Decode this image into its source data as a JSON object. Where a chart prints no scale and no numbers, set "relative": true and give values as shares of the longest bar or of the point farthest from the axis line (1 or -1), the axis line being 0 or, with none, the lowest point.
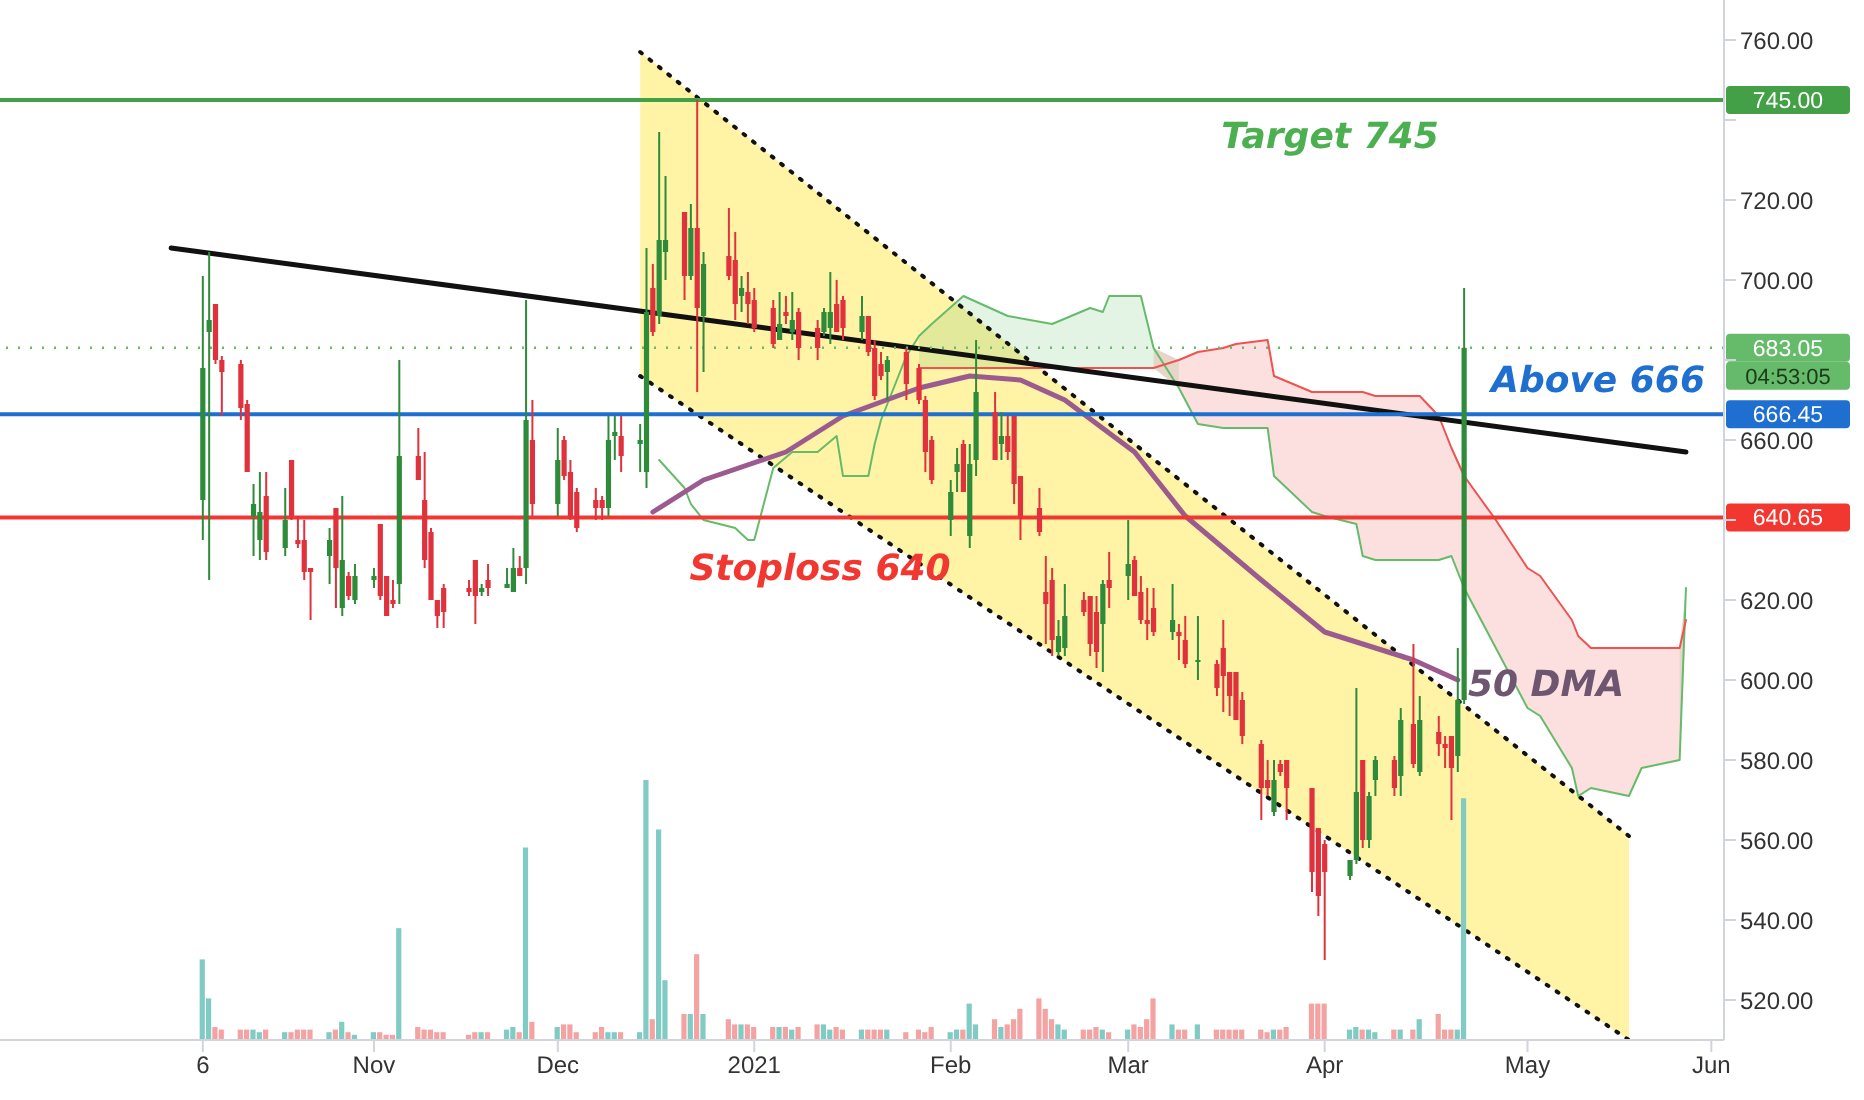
{
  "chart_data": [
    {
      "type": "candlestick",
      "x": [
        "2020-10-06",
        "2020-10-07",
        "2020-10-08",
        "2020-10-09",
        "2020-10-12",
        "2020-10-13",
        "2020-10-14",
        "2020-10-15",
        "2020-10-16",
        "2020-10-19",
        "2020-10-20",
        "2020-10-21",
        "2020-10-22",
        "2020-10-23",
        "2020-10-26",
        "2020-10-27",
        "2020-10-28",
        "2020-10-29",
        "2020-10-30",
        "2020-11-02",
        "2020-11-03",
        "2020-11-04",
        "2020-11-05",
        "2020-11-06",
        "2020-11-09",
        "2020-11-10",
        "2020-11-11",
        "2020-11-12",
        "2020-11-13",
        "2020-11-17",
        "2020-11-18",
        "2020-11-19",
        "2020-11-20",
        "2020-11-23",
        "2020-11-24",
        "2020-11-25",
        "2020-11-26",
        "2020-11-27",
        "2020-12-01",
        "2020-12-02",
        "2020-12-03",
        "2020-12-04",
        "2020-12-07",
        "2020-12-08",
        "2020-12-09",
        "2020-12-10",
        "2020-12-11",
        "2020-12-14",
        "2020-12-15",
        "2020-12-16",
        "2020-12-17",
        "2020-12-18",
        "2020-12-21",
        "2020-12-22",
        "2020-12-23",
        "2020-12-24",
        "2020-12-28",
        "2020-12-29",
        "2020-12-30",
        "2020-12-31",
        "2021-01-01",
        "2021-01-04",
        "2021-01-05",
        "2021-01-06",
        "2021-01-07",
        "2021-01-08",
        "2021-01-11",
        "2021-01-12",
        "2021-01-13",
        "2021-01-14",
        "2021-01-15",
        "2021-01-18",
        "2021-01-19",
        "2021-01-20",
        "2021-01-21",
        "2021-01-22",
        "2021-01-25",
        "2021-01-27",
        "2021-01-28",
        "2021-01-29",
        "2021-02-01",
        "2021-02-02",
        "2021-02-03",
        "2021-02-04",
        "2021-02-05",
        "2021-02-08",
        "2021-02-09",
        "2021-02-10",
        "2021-02-11",
        "2021-02-12",
        "2021-02-15",
        "2021-02-16",
        "2021-02-17",
        "2021-02-18",
        "2021-02-19",
        "2021-02-22",
        "2021-02-23",
        "2021-02-24",
        "2021-02-25",
        "2021-02-26",
        "2021-03-01",
        "2021-03-02",
        "2021-03-03",
        "2021-03-04",
        "2021-03-05",
        "2021-03-08",
        "2021-03-09",
        "2021-03-10",
        "2021-03-12",
        "2021-03-15",
        "2021-03-16",
        "2021-03-17",
        "2021-03-18",
        "2021-03-19",
        "2021-03-22",
        "2021-03-23",
        "2021-03-24",
        "2021-03-25",
        "2021-03-26",
        "2021-03-30",
        "2021-03-31",
        "2021-04-01",
        "2021-04-05",
        "2021-04-06",
        "2021-04-07",
        "2021-04-08",
        "2021-04-09",
        "2021-04-12",
        "2021-04-13",
        "2021-04-15",
        "2021-04-16",
        "2021-04-19",
        "2021-04-20",
        "2021-04-21",
        "2021-04-22",
        "2021-04-23"
      ],
      "ohlc": [
        [
          645,
          701,
          635,
          678
        ],
        [
          687,
          707,
          625,
          690
        ],
        [
          694,
          694,
          679,
          680
        ],
        [
          680,
          681,
          666,
          677
        ],
        [
          679,
          680,
          665,
          668
        ],
        [
          669,
          670,
          652,
          652
        ],
        [
          641,
          649,
          631,
          644
        ],
        [
          635,
          652,
          630,
          642
        ],
        [
          646,
          652,
          630,
          632
        ],
        [
          633,
          648,
          631,
          640
        ],
        [
          655,
          655,
          640,
          641
        ],
        [
          635,
          641,
          633,
          634
        ],
        [
          635,
          640,
          625,
          627
        ],
        [
          628,
          628,
          615,
          627
        ],
        [
          631,
          638,
          624,
          635
        ],
        [
          643,
          643,
          618,
          628
        ],
        [
          618,
          646,
          616,
          630
        ],
        [
          626,
          627,
          620,
          621
        ],
        [
          620,
          629,
          619,
          626
        ],
        [
          625,
          628,
          623,
          626
        ],
        [
          639,
          639,
          620,
          621
        ],
        [
          626,
          626,
          616,
          616
        ],
        [
          620,
          625,
          618,
          619
        ],
        [
          624,
          680,
          619,
          656
        ],
        [
          656,
          663,
          650,
          650
        ],
        [
          645,
          657,
          628,
          630
        ],
        [
          637,
          638,
          620,
          620
        ],
        [
          620,
          620,
          613,
          616
        ],
        [
          623,
          624,
          613,
          617
        ],
        [
          623,
          625,
          621,
          622
        ],
        [
          630,
          630,
          614,
          621
        ],
        [
          622,
          624,
          621,
          623
        ],
        [
          625,
          629,
          621,
          623
        ],
        [
          623,
          628,
          623,
          624
        ],
        [
          622,
          633,
          622,
          628
        ],
        [
          628,
          631,
          626,
          626
        ],
        [
          628,
          695,
          624,
          665
        ],
        [
          660,
          670,
          641,
          644
        ],
        [
          644,
          663,
          641,
          655
        ],
        [
          660,
          661,
          650,
          651
        ],
        [
          652,
          655,
          640,
          641
        ],
        [
          647,
          648,
          637,
          638
        ],
        [
          645,
          648,
          640,
          643
        ],
        [
          645,
          646,
          640,
          643
        ],
        [
          643,
          666,
          641,
          660
        ],
        [
          661,
          666,
          655,
          662
        ],
        [
          661,
          666,
          652,
          656
        ],
        [
          659,
          664,
          652,
          660
        ],
        [
          652,
          708,
          648,
          692
        ],
        [
          698,
          704,
          686,
          687
        ],
        [
          691,
          737,
          689,
          710
        ],
        [
          707,
          726,
          700,
          710
        ],
        [
          717,
          717,
          695,
          701
        ],
        [
          701,
          719,
          700,
          713
        ],
        [
          713,
          745,
          672,
          693
        ],
        [
          691,
          707,
          677,
          704
        ],
        [
          706,
          718,
          700,
          701
        ],
        [
          705,
          712,
          690,
          694
        ],
        [
          696,
          701,
          692,
          698
        ],
        [
          697,
          702,
          689,
          694
        ],
        [
          695,
          698,
          687,
          688
        ],
        [
          693,
          695,
          683,
          684
        ],
        [
          685,
          697,
          685,
          689
        ],
        [
          692,
          696,
          689,
          691
        ],
        [
          687,
          697,
          685,
          690
        ],
        [
          692,
          693,
          680,
          683
        ],
        [
          688,
          690,
          680,
          683
        ],
        [
          687,
          693,
          686,
          692
        ],
        [
          688,
          702,
          684,
          692
        ],
        [
          694,
          700,
          687,
          687
        ],
        [
          695,
          696,
          685,
          688
        ],
        [
          687,
          696,
          685,
          691
        ],
        [
          691,
          691,
          681,
          682
        ],
        [
          683,
          685,
          670,
          671
        ],
        [
          679,
          682,
          675,
          676
        ],
        [
          677,
          681,
          670,
          680
        ],
        [
          682,
          683,
          670,
          674
        ],
        [
          678,
          679,
          669,
          670
        ],
        [
          670,
          671,
          652,
          657
        ],
        [
          660,
          661,
          649,
          650
        ],
        [
          640,
          650,
          636,
          647
        ],
        [
          652,
          658,
          647,
          654
        ],
        [
          659,
          660,
          647,
          647
        ],
        [
          636,
          659,
          633,
          654
        ],
        [
          655,
          685,
          651,
          672
        ],
        [
          667,
          672,
          655,
          655
        ],
        [
          659,
          667,
          655,
          661
        ],
        [
          661,
          666,
          655,
          657
        ],
        [
          666,
          666,
          644,
          649
        ],
        [
          651,
          651,
          635,
          641
        ],
        [
          643,
          648,
          636,
          637
        ],
        [
          622,
          631,
          609,
          619
        ],
        [
          625,
          628,
          606,
          610
        ],
        [
          607,
          615,
          606,
          611
        ],
        [
          608,
          624,
          606,
          616
        ],
        [
          620,
          622,
          616,
          617
        ],
        [
          621,
          621,
          606,
          609
        ],
        [
          617,
          621,
          603,
          607
        ],
        [
          614,
          625,
          602,
          624
        ],
        [
          625,
          632,
          618,
          623
        ],
        [
          626,
          640,
          620,
          629
        ],
        [
          630,
          631,
          621,
          621
        ],
        [
          622,
          626,
          614,
          615
        ],
        [
          615,
          623,
          610,
          614
        ],
        [
          618,
          623,
          611,
          612
        ],
        [
          612,
          624,
          610,
          615
        ],
        [
          612,
          614,
          605,
          611
        ],
        [
          610,
          616,
          603,
          604
        ],
        [
          605,
          616,
          600,
          605
        ],
        [
          604,
          605,
          596,
          598
        ],
        [
          608,
          615,
          592,
          601
        ],
        [
          602,
          602,
          591,
          596
        ],
        [
          602,
          602,
          590,
          590
        ],
        [
          595,
          597,
          584,
          586
        ],
        [
          584,
          585,
          565,
          573
        ],
        [
          575,
          580,
          571,
          573
        ],
        [
          567,
          580,
          566,
          575
        ],
        [
          579,
          580,
          576,
          577
        ],
        [
          580,
          580,
          565,
          573
        ],
        [
          573,
          573,
          547,
          552
        ],
        [
          563,
          563,
          541,
          546
        ],
        [
          559,
          560,
          530,
          552
        ],
        [
          551,
          555,
          550,
          555
        ],
        [
          555,
          598,
          554,
          572
        ],
        [
          580,
          580,
          558,
          560
        ],
        [
          560,
          572,
          558,
          571
        ],
        [
          575,
          581,
          571,
          580
        ],
        [
          580,
          581,
          571,
          573
        ],
        [
          576,
          593,
          571,
          590
        ],
        [
          589,
          609,
          578,
          579
        ],
        [
          577,
          596,
          576,
          590
        ],
        [
          587,
          591,
          581,
          584
        ],
        [
          584,
          586,
          578,
          583
        ],
        [
          586,
          586,
          565,
          578
        ],
        [
          581,
          608,
          577,
          595
        ],
        [
          595,
          698,
          594,
          683.05
        ]
      ],
      "colors": [
        "#2e8b3a",
        "#2e8b3a",
        "#e0323c",
        "#e0323c",
        "#e0323c",
        "#e0323c",
        "#2e8b3a",
        "#2e8b3a",
        "#e0323c",
        "#2e8b3a",
        "#e0323c",
        "#e0323c",
        "#e0323c",
        "#e0323c",
        "#2e8b3a",
        "#e0323c",
        "#2e8b3a",
        "#e0323c",
        "#2e8b3a",
        "#2e8b3a",
        "#e0323c",
        "#e0323c",
        "#e0323c",
        "#2e8b3a",
        "#e0323c",
        "#e0323c",
        "#e0323c",
        "#e0323c",
        "#e0323c",
        "#e0323c",
        "#e0323c",
        "#2e8b3a",
        "#e0323c",
        "#2e8b3a",
        "#2e8b3a",
        "#e0323c",
        "#2e8b3a",
        "#e0323c",
        "#2e8b3a",
        "#e0323c",
        "#e0323c",
        "#e0323c",
        "#e0323c",
        "#e0323c",
        "#2e8b3a",
        "#2e8b3a",
        "#e0323c",
        "#2e8b3a",
        "#2e8b3a",
        "#e0323c",
        "#2e8b3a",
        "#2e8b3a",
        "#e0323c",
        "#2e8b3a",
        "#e0323c",
        "#2e8b3a",
        "#e0323c",
        "#e0323c",
        "#2e8b3a",
        "#e0323c",
        "#e0323c",
        "#e0323c",
        "#2e8b3a",
        "#e0323c",
        "#2e8b3a",
        "#e0323c",
        "#e0323c",
        "#2e8b3a",
        "#2e8b3a",
        "#e0323c",
        "#e0323c",
        "#2e8b3a",
        "#e0323c",
        "#e0323c",
        "#e0323c",
        "#2e8b3a",
        "#e0323c",
        "#e0323c",
        "#e0323c",
        "#e0323c",
        "#2e8b3a",
        "#2e8b3a",
        "#e0323c",
        "#2e8b3a",
        "#2e8b3a",
        "#e0323c",
        "#2e8b3a",
        "#e0323c",
        "#e0323c",
        "#e0323c",
        "#e0323c",
        "#e0323c",
        "#e0323c",
        "#2e8b3a",
        "#2e8b3a",
        "#e0323c",
        "#e0323c",
        "#e0323c",
        "#2e8b3a",
        "#e0323c",
        "#2e8b3a",
        "#e0323c",
        "#e0323c",
        "#e0323c",
        "#e0323c",
        "#2e8b3a",
        "#e0323c",
        "#e0323c",
        "#2e8b3a",
        "#e0323c",
        "#e0323c",
        "#e0323c",
        "#e0323c",
        "#e0323c",
        "#e0323c",
        "#e0323c",
        "#2e8b3a",
        "#e0323c",
        "#e0323c",
        "#e0323c",
        "#e0323c",
        "#e0323c",
        "#2e8b3a",
        "#2e8b3a",
        "#e0323c",
        "#2e8b3a",
        "#2e8b3a",
        "#e0323c",
        "#2e8b3a",
        "#e0323c",
        "#2e8b3a",
        "#e0323c",
        "#e0323c",
        "#e0323c",
        "#2e8b3a",
        "#2e8b3a"
      ],
      "xlim": [
        "2020-09-04",
        "2021-06-03"
      ],
      "xticks": [
        {
          "value": "2020-10-06",
          "label": "6"
        },
        {
          "value": "2020-11-02",
          "label": "Nov"
        },
        {
          "value": "2020-12-01",
          "label": "Dec"
        },
        {
          "value": "2021-01-01",
          "label": "2021"
        },
        {
          "value": "2021-02-01",
          "label": "Feb"
        },
        {
          "value": "2021-03-01",
          "label": "Mar"
        },
        {
          "value": "2021-04-01",
          "label": "Apr"
        },
        {
          "value": "2021-05-03",
          "label": "May"
        },
        {
          "value": "2021-06-01",
          "label": "Jun"
        }
      ],
      "ylim": [
        510,
        770
      ],
      "yticks": [
        {
          "value": 520,
          "label": "520.00"
        },
        {
          "value": 540,
          "label": "540.00"
        },
        {
          "value": 560,
          "label": "560.00"
        },
        {
          "value": 580,
          "label": "580.00"
        },
        {
          "value": 600,
          "label": "600.00"
        },
        {
          "value": 620,
          "label": "620.00"
        },
        {
          "value": 640,
          "label": null
        },
        {
          "value": 660,
          "label": "660.00"
        },
        {
          "value": 680,
          "label": null
        },
        {
          "value": 700,
          "label": "700.00"
        },
        {
          "value": 720,
          "label": "720.00"
        },
        {
          "value": 740,
          "label": null
        },
        {
          "value": 760,
          "label": "760.00"
        }
      ],
      "series": [
        {
          "type": "line",
          "color": "#111111",
          "line_style": "dotted",
          "x": [
            "2020-12-14",
            "2021-05-19"
          ],
          "values": [
            757,
            561
          ],
          "lower": [
            676,
            510
          ],
          "upper": [
            757,
            561
          ]
        },
        {
          "type": "line",
          "color": "#111111",
          "line_style": "dotted",
          "x": [
            "2020-12-14",
            "2021-05-19"
          ],
          "values": [
            676,
            510
          ]
        },
        {
          "type": "line",
          "color": "#66bb6a",
          "x": [
            "2020-12-17",
            "2020-12-21",
            "2020-12-22",
            "2020-12-24",
            "2020-12-29",
            "2020-12-31",
            "2021-01-01",
            "2021-01-04",
            "2021-01-07",
            "2021-01-11",
            "2021-01-14",
            "2021-01-15",
            "2021-01-19",
            "2021-01-20",
            "2021-01-21",
            "2021-01-25",
            "2021-01-27",
            "2021-01-29",
            "2021-02-03",
            "2021-02-10",
            "2021-02-17",
            "2021-02-23",
            "2021-02-25",
            "2021-02-26",
            "2021-03-03",
            "2021-03-05",
            "2021-03-09",
            "2021-03-12",
            "2021-03-16",
            "2021-03-18",
            "2021-03-23",
            "2021-03-24",
            "2021-03-30",
            "2021-04-01",
            "2021-04-06",
            "2021-04-07",
            "2021-04-09",
            "2021-04-16",
            "2021-04-19",
            "2021-04-21",
            "2021-04-23",
            "2021-04-28",
            "2021-05-03",
            "2021-05-05",
            "2021-05-10",
            "2021-05-11",
            "2021-05-13",
            "2021-05-19",
            "2021-05-21",
            "2021-05-27",
            "2021-05-28"
          ],
          "values": [
            655,
            648,
            644,
            640,
            638,
            635,
            635,
            653,
            657,
            657,
            661,
            651,
            651,
            659,
            665,
            681,
            686,
            689,
            696,
            691,
            689,
            693,
            692,
            696,
            696,
            683,
            673,
            664,
            663,
            663,
            663,
            651,
            642,
            641,
            639,
            631,
            630,
            630,
            630,
            631,
            623,
            608,
            593,
            591,
            578,
            571,
            573,
            571,
            578,
            580,
            623
          ],
          "lower": [
            null,
            null,
            null,
            null,
            null,
            null,
            null,
            null,
            null,
            null,
            null,
            null,
            null,
            null,
            null,
            null,
            678,
            678,
            678,
            678,
            678,
            678,
            678,
            678,
            678,
            678,
            673,
            null,
            null,
            null,
            null,
            null,
            null,
            null,
            null,
            null,
            null,
            null,
            null,
            null,
            null,
            null,
            null,
            null,
            null,
            null,
            null,
            null,
            null,
            580,
            615
          ],
          "upper": [
            null,
            null,
            null,
            null,
            null,
            null,
            null,
            null,
            null,
            null,
            null,
            null,
            null,
            null,
            null,
            null,
            686,
            689,
            696,
            691,
            689,
            693,
            692,
            696,
            696,
            683,
            680,
            null,
            null,
            null,
            null,
            null,
            null,
            null,
            null,
            null,
            null,
            null,
            null,
            null,
            null,
            null,
            null,
            null,
            null,
            null,
            null,
            null,
            null,
            608,
            623
          ]
        },
        {
          "type": "line",
          "color": "#ef5350",
          "x": [
            "2021-01-27",
            "2021-01-29",
            "2021-02-03",
            "2021-02-10",
            "2021-02-17",
            "2021-02-23",
            "2021-02-25",
            "2021-02-26",
            "2021-03-03",
            "2021-03-05",
            "2021-03-09",
            "2021-03-12",
            "2021-03-16",
            "2021-03-18",
            "2021-03-23",
            "2021-03-24",
            "2021-03-30",
            "2021-04-01",
            "2021-04-06",
            "2021-04-07",
            "2021-04-09",
            "2021-04-16",
            "2021-04-19",
            "2021-04-21",
            "2021-04-23",
            "2021-04-28",
            "2021-05-03",
            "2021-05-05",
            "2021-05-10",
            "2021-05-11",
            "2021-05-13",
            "2021-05-19",
            "2021-05-21",
            "2021-05-27",
            "2021-05-28"
          ],
          "values": [
            678,
            678,
            678,
            678,
            678,
            678,
            678,
            678,
            678,
            678,
            680,
            682,
            683,
            684,
            685,
            676,
            672,
            672,
            672,
            672,
            671,
            671,
            666,
            658,
            651,
            640,
            628,
            626,
            615,
            611,
            608,
            608,
            608,
            608,
            615
          ],
          "lower": [
            null,
            null,
            null,
            null,
            null,
            null,
            null,
            null,
            null,
            678,
            673,
            664,
            663,
            663,
            663,
            651,
            642,
            641,
            639,
            631,
            630,
            630,
            630,
            631,
            623,
            608,
            593,
            591,
            578,
            571,
            573,
            571,
            578,
            580,
            615
          ],
          "upper": [
            null,
            null,
            null,
            null,
            null,
            null,
            null,
            null,
            null,
            683,
            680,
            682,
            683,
            684,
            685,
            676,
            672,
            672,
            672,
            672,
            671,
            671,
            666,
            658,
            651,
            640,
            628,
            626,
            615,
            611,
            608,
            608,
            608,
            608,
            623
          ]
        },
        {
          "type": "line",
          "color": "#9b5b8e",
          "x": [
            "2020-12-16",
            "2020-12-24",
            "2021-01-06",
            "2021-01-15",
            "2021-01-27",
            "2021-02-04",
            "2021-02-12",
            "2021-02-19",
            "2021-03-02",
            "2021-03-10",
            "2021-03-22",
            "2021-04-01",
            "2021-04-15",
            "2021-04-22"
          ],
          "values": [
            642,
            650,
            657,
            666,
            673,
            676,
            675,
            670,
            657,
            641,
            625,
            612,
            605,
            600
          ]
        },
        {
          "type": "line",
          "color": "#111111",
          "x": [
            "2020-10-01",
            "2021-05-28"
          ],
          "values": [
            708,
            657
          ]
        }
      ],
      "ref_lines": [
        {
          "axis": "y",
          "value": 745,
          "label": "745.00",
          "color": "#43a047"
        },
        {
          "axis": "y",
          "value": 683.05,
          "label": "683.05",
          "color": "#66bb6a",
          "line_style": "dotted"
        },
        {
          "axis": "y",
          "value": 666.45,
          "label": "666.45",
          "color": "#1e6fd0"
        },
        {
          "axis": "y",
          "value": 640.65,
          "label": "640.65",
          "color": "#f23630"
        }
      ],
      "annotations": [
        "Target 745",
        "Above 666",
        "Stoploss 640",
        "50 DMA",
        "04:53:05"
      ]
    },
    {
      "type": "bar",
      "relative": true,
      "tick_labels": false,
      "xlim": [
        "2020-09-04",
        "2021-06-03"
      ],
      "x": [
        "2020-10-06",
        "2020-10-07",
        "2020-10-08",
        "2020-10-09",
        "2020-10-12",
        "2020-10-13",
        "2020-10-14",
        "2020-10-15",
        "2020-10-16",
        "2020-10-19",
        "2020-10-20",
        "2020-10-21",
        "2020-10-22",
        "2020-10-23",
        "2020-10-26",
        "2020-10-27",
        "2020-10-28",
        "2020-10-29",
        "2020-10-30",
        "2020-11-02",
        "2020-11-03",
        "2020-11-04",
        "2020-11-05",
        "2020-11-06",
        "2020-11-09",
        "2020-11-10",
        "2020-11-11",
        "2020-11-12",
        "2020-11-13",
        "2020-11-17",
        "2020-11-18",
        "2020-11-19",
        "2020-11-20",
        "2020-11-23",
        "2020-11-24",
        "2020-11-25",
        "2020-11-26",
        "2020-11-27",
        "2020-12-01",
        "2020-12-02",
        "2020-12-03",
        "2020-12-04",
        "2020-12-07",
        "2020-12-08",
        "2020-12-09",
        "2020-12-10",
        "2020-12-11",
        "2020-12-14",
        "2020-12-15",
        "2020-12-16",
        "2020-12-17",
        "2020-12-18",
        "2020-12-21",
        "2020-12-22",
        "2020-12-23",
        "2020-12-24",
        "2020-12-28",
        "2020-12-29",
        "2020-12-30",
        "2020-12-31",
        "2021-01-01",
        "2021-01-04",
        "2021-01-05",
        "2021-01-06",
        "2021-01-07",
        "2021-01-08",
        "2021-01-11",
        "2021-01-12",
        "2021-01-13",
        "2021-01-14",
        "2021-01-15",
        "2021-01-18",
        "2021-01-19",
        "2021-01-20",
        "2021-01-21",
        "2021-01-22",
        "2021-01-25",
        "2021-01-27",
        "2021-01-28",
        "2021-01-29",
        "2021-02-01",
        "2021-02-02",
        "2021-02-03",
        "2021-02-04",
        "2021-02-05",
        "2021-02-08",
        "2021-02-09",
        "2021-02-10",
        "2021-02-11",
        "2021-02-12",
        "2021-02-15",
        "2021-02-16",
        "2021-02-17",
        "2021-02-18",
        "2021-02-19",
        "2021-02-22",
        "2021-02-23",
        "2021-02-24",
        "2021-02-25",
        "2021-02-26",
        "2021-03-01",
        "2021-03-02",
        "2021-03-03",
        "2021-03-04",
        "2021-03-05",
        "2021-03-08",
        "2021-03-09",
        "2021-03-10",
        "2021-03-12",
        "2021-03-15",
        "2021-03-16",
        "2021-03-17",
        "2021-03-18",
        "2021-03-19",
        "2021-03-22",
        "2021-03-23",
        "2021-03-24",
        "2021-03-25",
        "2021-03-26",
        "2021-03-30",
        "2021-03-31",
        "2021-04-01",
        "2021-04-05",
        "2021-04-06",
        "2021-04-07",
        "2021-04-08",
        "2021-04-09",
        "2021-04-12",
        "2021-04-13",
        "2021-04-15",
        "2021-04-16",
        "2021-04-19",
        "2021-04-20",
        "2021-04-21",
        "2021-04-22",
        "2021-04-23"
      ],
      "values": [
        0.31,
        0.16,
        0.05,
        0.04,
        0.04,
        0.04,
        0.04,
        0.03,
        0.04,
        0.03,
        0.03,
        0.04,
        0.04,
        0.04,
        0.03,
        0.04,
        0.07,
        0.03,
        0.02,
        0.03,
        0.03,
        0.02,
        0.02,
        0.43,
        0.05,
        0.04,
        0.04,
        0.03,
        0.03,
        0.02,
        0.03,
        0.03,
        0.03,
        0.04,
        0.05,
        0.03,
        0.74,
        0.07,
        0.05,
        0.06,
        0.06,
        0.03,
        0.03,
        0.05,
        0.03,
        0.03,
        0.03,
        0.03,
        1.0,
        0.08,
        0.81,
        0.23,
        0.1,
        0.1,
        0.33,
        0.1,
        0.08,
        0.06,
        0.06,
        0.06,
        0.05,
        0.05,
        0.05,
        0.05,
        0.04,
        0.05,
        0.06,
        0.06,
        0.04,
        0.05,
        0.04,
        0.04,
        0.04,
        0.04,
        0.04,
        0.04,
        0.03,
        0.04,
        0.03,
        0.05,
        0.03,
        0.04,
        0.04,
        0.14,
        0.06,
        0.08,
        0.05,
        0.06,
        0.08,
        0.12,
        0.16,
        0.12,
        0.08,
        0.06,
        0.04,
        0.04,
        0.04,
        0.05,
        0.04,
        0.03,
        0.04,
        0.06,
        0.05,
        0.08,
        0.16,
        0.06,
        0.04,
        0.04,
        0.06,
        0.04,
        0.04,
        0.04,
        0.04,
        0.04,
        0.04,
        0.03,
        0.04,
        0.04,
        0.05,
        0.14,
        0.14,
        0.14,
        0.04,
        0.05,
        0.04,
        0.04,
        0.03,
        0.04,
        0.04,
        0.04,
        0.08,
        0.1,
        0.04,
        0.04,
        0.04,
        0.93
      ],
      "colors": [
        "#80cbc4",
        "#80cbc4",
        "#f4a3a3",
        "#f4a3a3",
        "#f4a3a3",
        "#f4a3a3",
        "#80cbc4",
        "#80cbc4",
        "#f4a3a3",
        "#80cbc4",
        "#f4a3a3",
        "#f4a3a3",
        "#f4a3a3",
        "#f4a3a3",
        "#80cbc4",
        "#f4a3a3",
        "#80cbc4",
        "#f4a3a3",
        "#80cbc4",
        "#80cbc4",
        "#f4a3a3",
        "#f4a3a3",
        "#f4a3a3",
        "#80cbc4",
        "#f4a3a3",
        "#f4a3a3",
        "#f4a3a3",
        "#f4a3a3",
        "#f4a3a3",
        "#f4a3a3",
        "#f4a3a3",
        "#80cbc4",
        "#f4a3a3",
        "#80cbc4",
        "#80cbc4",
        "#f4a3a3",
        "#80cbc4",
        "#f4a3a3",
        "#80cbc4",
        "#f4a3a3",
        "#f4a3a3",
        "#f4a3a3",
        "#f4a3a3",
        "#f4a3a3",
        "#80cbc4",
        "#80cbc4",
        "#f4a3a3",
        "#80cbc4",
        "#80cbc4",
        "#f4a3a3",
        "#80cbc4",
        "#80cbc4",
        "#f4a3a3",
        "#80cbc4",
        "#f4a3a3",
        "#80cbc4",
        "#f4a3a3",
        "#f4a3a3",
        "#80cbc4",
        "#f4a3a3",
        "#f4a3a3",
        "#f4a3a3",
        "#80cbc4",
        "#f4a3a3",
        "#80cbc4",
        "#f4a3a3",
        "#f4a3a3",
        "#80cbc4",
        "#80cbc4",
        "#f4a3a3",
        "#f4a3a3",
        "#80cbc4",
        "#f4a3a3",
        "#f4a3a3",
        "#f4a3a3",
        "#80cbc4",
        "#f4a3a3",
        "#f4a3a3",
        "#f4a3a3",
        "#f4a3a3",
        "#80cbc4",
        "#80cbc4",
        "#f4a3a3",
        "#80cbc4",
        "#80cbc4",
        "#f4a3a3",
        "#80cbc4",
        "#f4a3a3",
        "#f4a3a3",
        "#f4a3a3",
        "#f4a3a3",
        "#f4a3a3",
        "#f4a3a3",
        "#80cbc4",
        "#80cbc4",
        "#f4a3a3",
        "#f4a3a3",
        "#f4a3a3",
        "#80cbc4",
        "#f4a3a3",
        "#80cbc4",
        "#f4a3a3",
        "#f4a3a3",
        "#f4a3a3",
        "#f4a3a3",
        "#80cbc4",
        "#f4a3a3",
        "#f4a3a3",
        "#80cbc4",
        "#f4a3a3",
        "#f4a3a3",
        "#f4a3a3",
        "#f4a3a3",
        "#f4a3a3",
        "#f4a3a3",
        "#f4a3a3",
        "#80cbc4",
        "#f4a3a3",
        "#f4a3a3",
        "#f4a3a3",
        "#f4a3a3",
        "#f4a3a3",
        "#80cbc4",
        "#80cbc4",
        "#f4a3a3",
        "#80cbc4",
        "#80cbc4",
        "#f4a3a3",
        "#80cbc4",
        "#f4a3a3",
        "#80cbc4",
        "#f4a3a3",
        "#f4a3a3",
        "#f4a3a3",
        "#80cbc4",
        "#80cbc4"
      ]
    }
  ]
}
